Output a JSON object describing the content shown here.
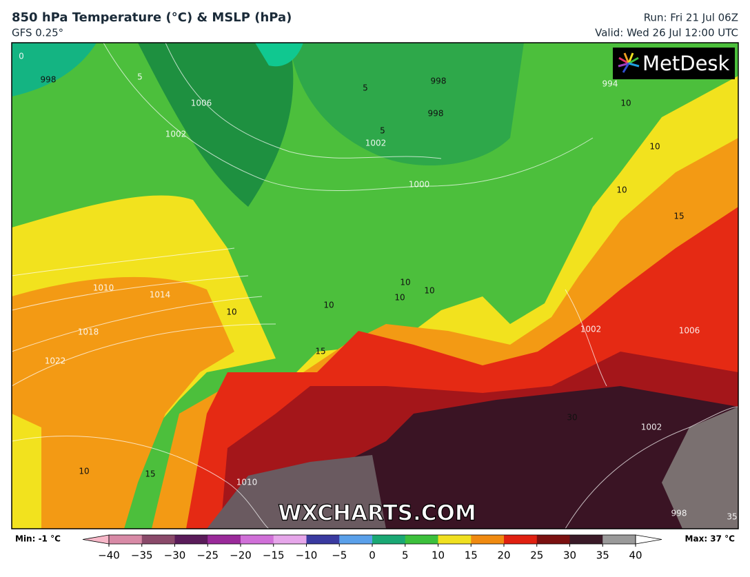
{
  "header": {
    "title": "850 hPa Temperature (°C) & MSLP (hPa)",
    "model": "GFS 0.25°",
    "run": "Run: Fri 21 Jul 06Z",
    "valid": "Valid: Wed 26 Jul 12:00 UTC"
  },
  "map": {
    "logo": "MetDesk",
    "watermark": "WXCHARTS.COM",
    "contour_labels": [
      "0",
      "998",
      "5",
      "1006",
      "1002",
      "5",
      "998",
      "998",
      "994",
      "10",
      "10",
      "1002",
      "5",
      "1000",
      "10",
      "15",
      "10",
      "10",
      "10",
      "10",
      "10",
      "1010",
      "1014",
      "1018",
      "1022",
      "15",
      "10",
      "15",
      "1010",
      "1002",
      "1002",
      "1006",
      "30",
      "998",
      "35"
    ]
  },
  "colorbar": {
    "min_label": "Min: -1 °C",
    "max_label": "Max: 37 °C",
    "ticks": [
      {
        "value": -40,
        "label": "−40"
      },
      {
        "value": -35,
        "label": "−35"
      },
      {
        "value": -30,
        "label": "−30"
      },
      {
        "value": -25,
        "label": "−25"
      },
      {
        "value": -20,
        "label": "−20"
      },
      {
        "value": -15,
        "label": "−15"
      },
      {
        "value": -10,
        "label": "−10"
      },
      {
        "value": -5,
        "label": "−5"
      },
      0,
      5,
      10,
      15,
      20,
      25,
      30,
      35,
      40
    ],
    "colors": [
      "#d88aa6",
      "#8a4a6a",
      "#5a1c5a",
      "#9a2a9a",
      "#d070d8",
      "#e6a6ea",
      "#3a3aa0",
      "#5aa0ea",
      "#1aa874",
      "#3cc03c",
      "#f0e020",
      "#f08a10",
      "#e02010",
      "#7a1010",
      "#3a1a28",
      "#9a9a9a"
    ],
    "under_color": "#f7b7c8",
    "over_color": "#ffffff"
  }
}
